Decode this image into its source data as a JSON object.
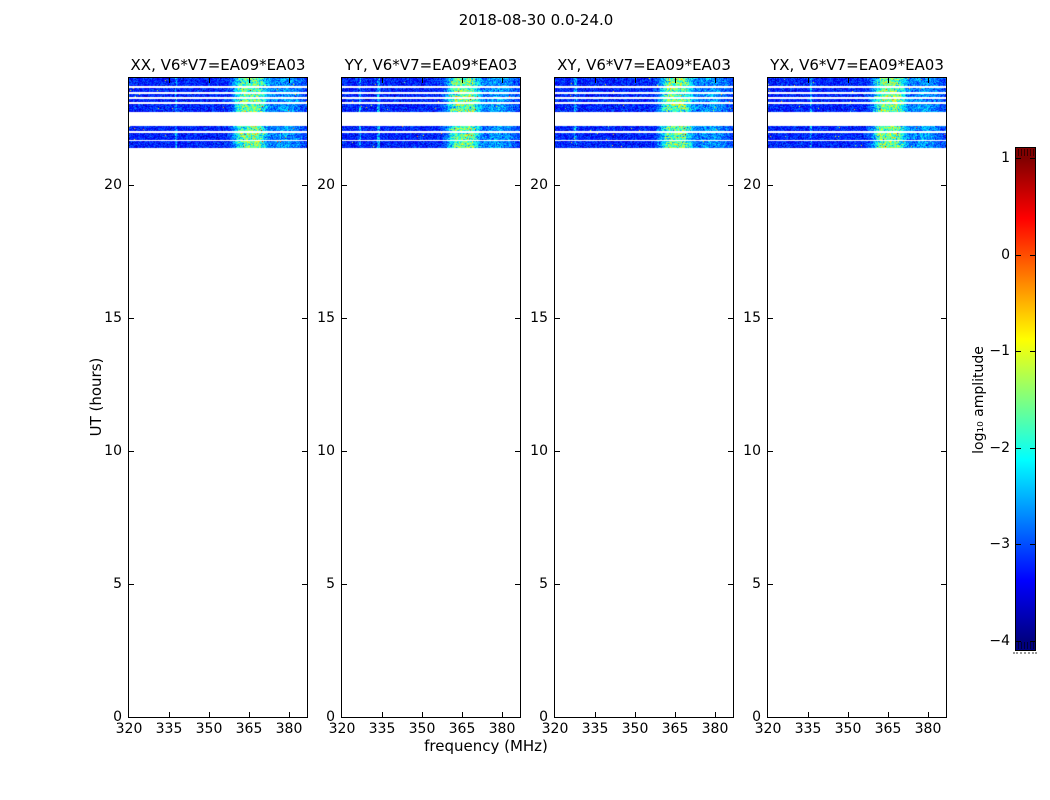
{
  "figure": {
    "title": "2018-08-30 0.0-24.0",
    "xlabel": "frequency (MHz)",
    "ylabel": "UT (hours)",
    "colorbar_label": "log₁₀ amplitude"
  },
  "panels": [
    {
      "id": "xx",
      "title": "XX, V6*V7=EA09*EA03"
    },
    {
      "id": "yy",
      "title": "YY, V6*V7=EA09*EA03"
    },
    {
      "id": "xy",
      "title": "XY, V6*V7=EA09*EA03"
    },
    {
      "id": "yx",
      "title": "YX, V6*V7=EA09*EA03"
    }
  ],
  "axes": {
    "x_ticks": [
      "320",
      "335",
      "350",
      "365",
      "380"
    ],
    "y_ticks": [
      "0",
      "5",
      "10",
      "15",
      "20"
    ]
  },
  "colorbar": {
    "ticks": [
      "1",
      "0",
      "−1",
      "−2",
      "−3",
      "−4"
    ]
  },
  "chart_data": {
    "type": "heatmap",
    "title": "2018-08-30 0.0-24.0",
    "xlabel": "frequency (MHz)",
    "ylabel": "UT (hours)",
    "subplot_titles": [
      "XX, V6*V7=EA09*EA03",
      "YY, V6*V7=EA09*EA03",
      "XY, V6*V7=EA09*EA03",
      "YX, V6*V7=EA09*EA03"
    ],
    "xlim": [
      320,
      386.8
    ],
    "ylim": [
      0,
      24
    ],
    "x_ticks": [
      320,
      335,
      350,
      365,
      380
    ],
    "y_ticks": [
      0,
      5,
      10,
      15,
      20
    ],
    "colorbar": {
      "label": "log₁₀ amplitude",
      "ticks": [
        1,
        0,
        -1,
        -2,
        -3,
        -4
      ],
      "range": [
        -4,
        1
      ],
      "colormap": "jet"
    },
    "emission": {
      "note": "dynamic spectra; data present only near top of plots (UT ~21.4-24.0), rest is blank/white",
      "bands_ut": [
        [
          23.7,
          24.0
        ],
        [
          23.47,
          23.62
        ],
        [
          23.29,
          23.4
        ],
        [
          23.1,
          23.21
        ],
        [
          22.72,
          23.02
        ],
        [
          22.01,
          22.2
        ],
        [
          21.67,
          21.93
        ],
        [
          21.37,
          21.63
        ]
      ],
      "base_level_log10": -3.2,
      "bright_patch_mhz": [
        358,
        372
      ],
      "bright_patch_level_log10": -1.6,
      "secondary_patch_mhz": [
        373,
        384
      ],
      "secondary_patch_level_log10": -2.5,
      "rfi_lines_mhz": [
        [
          337.5
        ],
        [
          326.5,
          333.5
        ],
        [
          327.5
        ],
        [
          336.0
        ]
      ]
    }
  }
}
